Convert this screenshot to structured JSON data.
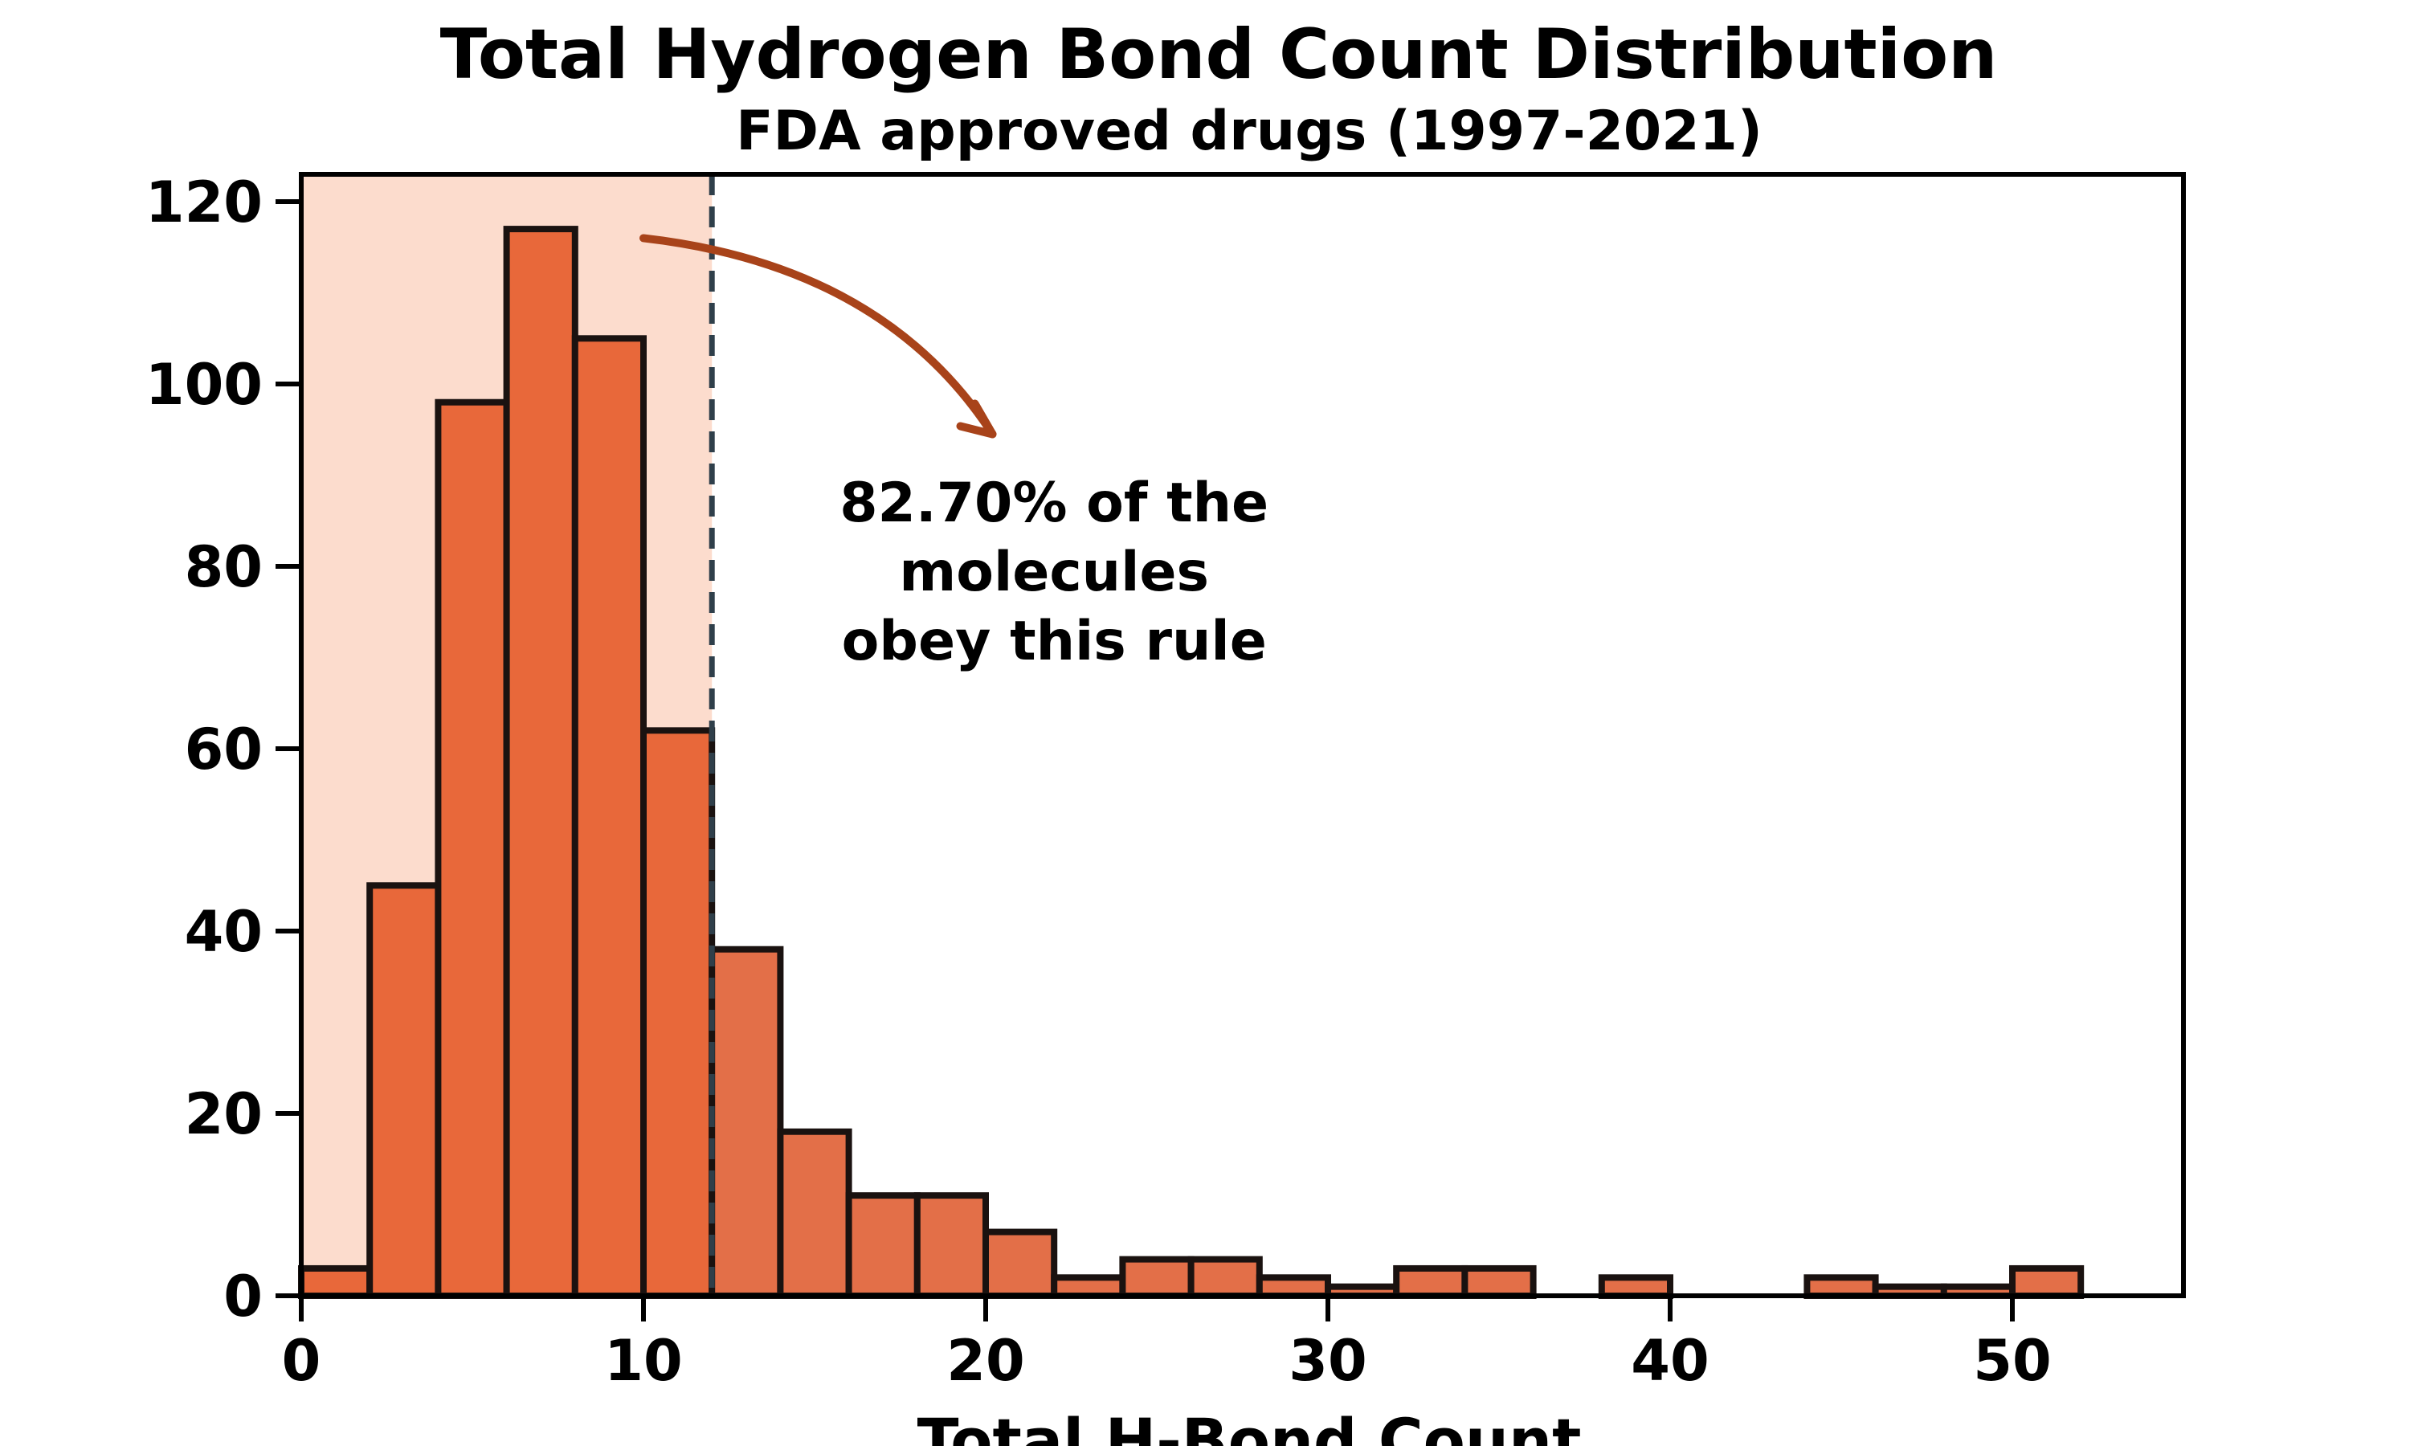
{
  "chart_data": {
    "type": "bar",
    "subtype": "histogram",
    "title": "Total Hydrogen Bond Count Distribution",
    "subtitle": "FDA approved drugs (1997-2021)",
    "xlabel": "Total H-Bond Count",
    "ylabel": "",
    "xlim": [
      0,
      55
    ],
    "ylim": [
      0,
      123
    ],
    "x_ticks": [
      0,
      10,
      20,
      30,
      40,
      50
    ],
    "y_ticks": [
      0,
      20,
      40,
      60,
      80,
      100,
      120
    ],
    "bin_width": 2,
    "bins": [
      {
        "start": 0,
        "end": 2,
        "count": 3
      },
      {
        "start": 2,
        "end": 4,
        "count": 45
      },
      {
        "start": 4,
        "end": 6,
        "count": 98
      },
      {
        "start": 6,
        "end": 8,
        "count": 117
      },
      {
        "start": 8,
        "end": 10,
        "count": 105
      },
      {
        "start": 10,
        "end": 12,
        "count": 62
      },
      {
        "start": 12,
        "end": 14,
        "count": 38
      },
      {
        "start": 14,
        "end": 16,
        "count": 18
      },
      {
        "start": 16,
        "end": 18,
        "count": 11
      },
      {
        "start": 18,
        "end": 20,
        "count": 11
      },
      {
        "start": 20,
        "end": 22,
        "count": 7
      },
      {
        "start": 22,
        "end": 24,
        "count": 2
      },
      {
        "start": 24,
        "end": 26,
        "count": 4
      },
      {
        "start": 26,
        "end": 28,
        "count": 4
      },
      {
        "start": 28,
        "end": 30,
        "count": 2
      },
      {
        "start": 30,
        "end": 32,
        "count": 1
      },
      {
        "start": 32,
        "end": 34,
        "count": 3
      },
      {
        "start": 34,
        "end": 36,
        "count": 3
      },
      {
        "start": 36,
        "end": 38,
        "count": 0
      },
      {
        "start": 38,
        "end": 40,
        "count": 2
      },
      {
        "start": 40,
        "end": 42,
        "count": 0
      },
      {
        "start": 42,
        "end": 44,
        "count": 0
      },
      {
        "start": 44,
        "end": 46,
        "count": 2
      },
      {
        "start": 46,
        "end": 48,
        "count": 1
      },
      {
        "start": 48,
        "end": 50,
        "count": 1
      },
      {
        "start": 50,
        "end": 52,
        "count": 3
      }
    ],
    "threshold": 12,
    "annotation": {
      "lines": [
        "82.70% of the",
        "molecules",
        "obey this rule"
      ]
    },
    "grid": false,
    "colors": {
      "bar_fill": "#e8683a",
      "bar_fill_outside": "#e36f48",
      "bar_edge": "#1a1210",
      "shaded_region": "#fcdccd",
      "threshold_line": "#2f3f4a",
      "arrow": "#a8431a"
    }
  }
}
